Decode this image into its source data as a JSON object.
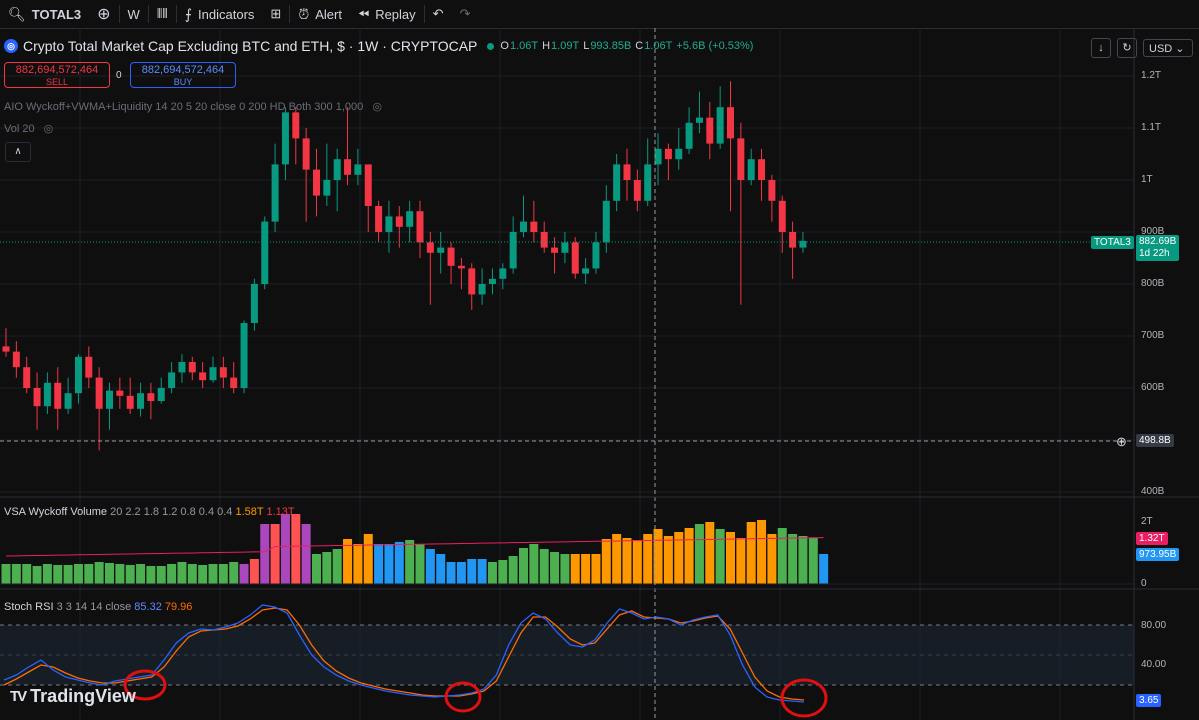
{
  "toolbar": {
    "symbol": "TOTAL3",
    "interval": "W",
    "indicators": "Indicators",
    "alert": "Alert",
    "replay": "Replay"
  },
  "header": {
    "title": "Crypto Total Market Cap Excluding BTC and ETH, $ · 1W · CRYPTOCAP",
    "o_label": "O",
    "o": "1.06T",
    "h_label": "H",
    "h": "1.09T",
    "l_label": "L",
    "l": "993.85B",
    "c_label": "C",
    "c": "1.06T",
    "change": "+5.6B (+0.53%)",
    "sell_price": "882,694,572,464",
    "sell_label": "SELL",
    "buy_price": "882,694,572,464",
    "buy_label": "BUY",
    "spread": "0",
    "indicator1": "AIO Wyckoff+VWMA+Liquidity 14 20 5 20 close 0 200 HD Both 300 1,000",
    "indicator2": "Vol 20",
    "currency": "USD"
  },
  "price_axis": {
    "ticks": [
      "1.2T",
      "1.1T",
      "1T",
      "900B",
      "800B",
      "700B",
      "600B",
      "500B",
      "400B"
    ],
    "last_price": "882.69B",
    "countdown": "1d 22h",
    "symbol_tag": "TOTAL3",
    "crosshair_price": "498.8B"
  },
  "volume_pane": {
    "label": "VSA Wyckoff Volume",
    "params": "20 2.2 1.8 1.2 0.8 0.4 0.4",
    "val1": "1.58T",
    "val2": "1.13T",
    "ticks": [
      "2T",
      "0"
    ],
    "tag_ma": "1.32T",
    "tag_vol": "973.95B"
  },
  "rsi_pane": {
    "label": "Stoch RSI",
    "params": "3 3 14 14 close",
    "k": "85.32",
    "d": "79.96",
    "ticks": [
      "80.00",
      "40.00"
    ],
    "tag_k": "3.65"
  },
  "watermark": "TradingView",
  "colors": {
    "up": "#089981",
    "down": "#f23645",
    "bg": "#0f0f0f",
    "k": "#2962ff",
    "d": "#ff6d00"
  },
  "chart_data": {
    "type": "candlestick",
    "candles": [
      [
        680,
        670,
        715,
        660
      ],
      [
        670,
        640,
        690,
        620
      ],
      [
        640,
        600,
        660,
        590
      ],
      [
        600,
        565,
        630,
        520
      ],
      [
        565,
        610,
        630,
        550
      ],
      [
        610,
        560,
        640,
        520
      ],
      [
        560,
        590,
        620,
        550
      ],
      [
        590,
        660,
        665,
        570
      ],
      [
        660,
        620,
        680,
        600
      ],
      [
        620,
        560,
        640,
        480
      ],
      [
        560,
        595,
        610,
        520
      ],
      [
        595,
        585,
        620,
        560
      ],
      [
        585,
        560,
        620,
        550
      ],
      [
        560,
        590,
        610,
        545
      ],
      [
        590,
        575,
        610,
        540
      ],
      [
        575,
        600,
        620,
        570
      ],
      [
        600,
        630,
        650,
        590
      ],
      [
        630,
        650,
        665,
        610
      ],
      [
        650,
        630,
        660,
        615
      ],
      [
        630,
        615,
        650,
        600
      ],
      [
        615,
        640,
        660,
        610
      ],
      [
        640,
        620,
        660,
        600
      ],
      [
        620,
        600,
        650,
        590
      ],
      [
        600,
        725,
        730,
        590
      ],
      [
        725,
        800,
        810,
        710
      ],
      [
        800,
        920,
        930,
        790
      ],
      [
        920,
        1030,
        1070,
        900
      ],
      [
        1030,
        1130,
        1140,
        1000
      ],
      [
        1130,
        1080,
        1140,
        1030
      ],
      [
        1080,
        1020,
        1100,
        920
      ],
      [
        1020,
        970,
        1060,
        930
      ],
      [
        970,
        1000,
        1070,
        950
      ],
      [
        1000,
        1040,
        1060,
        940
      ],
      [
        1040,
        1010,
        1140,
        990
      ],
      [
        1010,
        1030,
        1060,
        990
      ],
      [
        1030,
        950,
        1030,
        900
      ],
      [
        950,
        900,
        960,
        880
      ],
      [
        900,
        930,
        960,
        860
      ],
      [
        930,
        910,
        950,
        870
      ],
      [
        910,
        940,
        960,
        880
      ],
      [
        940,
        880,
        960,
        850
      ],
      [
        880,
        860,
        900,
        760
      ],
      [
        860,
        870,
        900,
        820
      ],
      [
        870,
        835,
        880,
        800
      ],
      [
        835,
        830,
        850,
        790
      ],
      [
        830,
        780,
        840,
        750
      ],
      [
        780,
        800,
        830,
        760
      ],
      [
        800,
        810,
        830,
        780
      ],
      [
        810,
        830,
        840,
        790
      ],
      [
        830,
        900,
        930,
        820
      ],
      [
        900,
        920,
        970,
        890
      ],
      [
        920,
        900,
        960,
        880
      ],
      [
        900,
        870,
        920,
        860
      ],
      [
        870,
        860,
        890,
        820
      ],
      [
        860,
        880,
        900,
        840
      ],
      [
        880,
        820,
        890,
        810
      ],
      [
        820,
        830,
        850,
        800
      ],
      [
        830,
        880,
        900,
        820
      ],
      [
        880,
        960,
        990,
        860
      ],
      [
        960,
        1030,
        1050,
        940
      ],
      [
        1030,
        1000,
        1060,
        960
      ],
      [
        1000,
        960,
        1020,
        940
      ],
      [
        960,
        1030,
        1080,
        950
      ],
      [
        1030,
        1060,
        1090,
        990
      ],
      [
        1060,
        1040,
        1070,
        1000
      ],
      [
        1040,
        1060,
        1100,
        1020
      ],
      [
        1060,
        1110,
        1140,
        1050
      ],
      [
        1110,
        1120,
        1170,
        1090
      ],
      [
        1120,
        1070,
        1150,
        1040
      ],
      [
        1070,
        1140,
        1180,
        1060
      ],
      [
        1140,
        1080,
        1190,
        940
      ],
      [
        1080,
        1000,
        1110,
        760
      ],
      [
        1000,
        1040,
        1060,
        990
      ],
      [
        1040,
        1000,
        1060,
        960
      ],
      [
        1000,
        960,
        1010,
        920
      ],
      [
        960,
        900,
        970,
        860
      ],
      [
        900,
        870,
        920,
        810
      ],
      [
        870,
        883,
        900,
        860
      ]
    ],
    "volume_ma_tag": "1.32T",
    "stoch_k": [
      25,
      30,
      38,
      45,
      35,
      28,
      25,
      22,
      20,
      24,
      26,
      28,
      30,
      45,
      62,
      72,
      76,
      75,
      78,
      82,
      90,
      100,
      98,
      92,
      70,
      50,
      38,
      30,
      24,
      20,
      17,
      14,
      12,
      10,
      9,
      8,
      9,
      10,
      12,
      16,
      30,
      60,
      82,
      92,
      86,
      72,
      60,
      58,
      65,
      82,
      96,
      92,
      86,
      88,
      86,
      80,
      85,
      88,
      90,
      70,
      40,
      18,
      8,
      5,
      4,
      3
    ],
    "stoch_d": [
      20,
      26,
      33,
      40,
      38,
      32,
      27,
      24,
      22,
      22,
      24,
      26,
      28,
      38,
      54,
      68,
      74,
      75,
      76,
      79,
      86,
      95,
      97,
      95,
      80,
      60,
      44,
      34,
      27,
      22,
      19,
      16,
      14,
      12,
      10,
      9,
      9,
      9,
      11,
      14,
      24,
      48,
      72,
      88,
      88,
      78,
      66,
      60,
      62,
      76,
      90,
      94,
      88,
      87,
      86,
      82,
      84,
      87,
      89,
      76,
      52,
      28,
      14,
      8,
      6,
      5
    ]
  }
}
